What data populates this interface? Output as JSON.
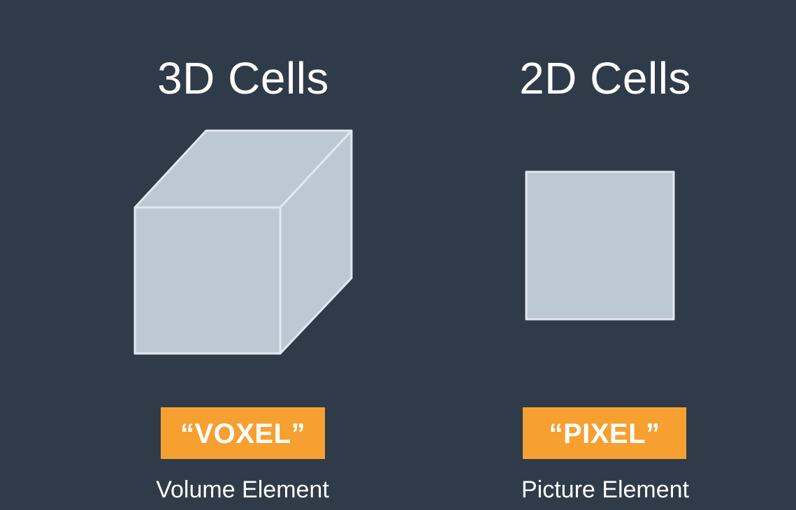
{
  "colors": {
    "background": "#2f3b49",
    "shape_fill": "#bdc8d5",
    "shape_stroke": "#e2e8ef",
    "tag_fill": "#f6a032",
    "text": "#ffffff"
  },
  "left_panel": {
    "title": "3D Cells",
    "shape_icon": "cube-icon",
    "tag": "“VOXEL”",
    "caption": "Volume Element"
  },
  "right_panel": {
    "title": "2D Cells",
    "shape_icon": "square-icon",
    "tag": "“PIXEL”",
    "caption": "Picture Element"
  }
}
